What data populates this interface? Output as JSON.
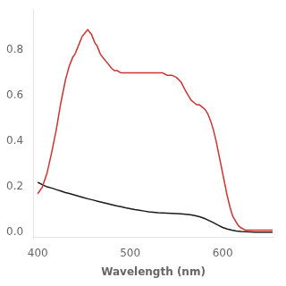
{
  "chart_data": {
    "type": "line",
    "xlabel": "Wavelength (nm)",
    "xlim": [
      395,
      655
    ],
    "ylim": [
      -0.02,
      0.98
    ],
    "xticks": [
      400,
      500,
      600
    ],
    "yticks": [
      {
        "value": 0.0,
        "label": "0.0"
      },
      0.2,
      0.4,
      0.6,
      0.8
    ],
    "grid": false,
    "series": [
      {
        "color": "#cc3333",
        "x": [
          400,
          405,
          410,
          415,
          420,
          425,
          430,
          432,
          434,
          436,
          438,
          440,
          442,
          444,
          446,
          448,
          450,
          452,
          454,
          456,
          458,
          460,
          462,
          464,
          466,
          468,
          470,
          472,
          474,
          476,
          478,
          480,
          483,
          486,
          490,
          494,
          498,
          502,
          506,
          510,
          515,
          520,
          525,
          530,
          535,
          540,
          545,
          550,
          555,
          560,
          563,
          566,
          569,
          572,
          575,
          578,
          581,
          584,
          587,
          590,
          593,
          596,
          599,
          602,
          605,
          608,
          611,
          614,
          617,
          620,
          625,
          630,
          635,
          640,
          645,
          650,
          654
        ],
        "values": [
          0.17,
          0.2,
          0.26,
          0.35,
          0.45,
          0.57,
          0.67,
          0.7,
          0.73,
          0.75,
          0.77,
          0.78,
          0.8,
          0.82,
          0.84,
          0.86,
          0.87,
          0.88,
          0.89,
          0.88,
          0.87,
          0.85,
          0.83,
          0.82,
          0.8,
          0.78,
          0.77,
          0.76,
          0.75,
          0.74,
          0.73,
          0.72,
          0.71,
          0.71,
          0.7,
          0.7,
          0.7,
          0.7,
          0.7,
          0.7,
          0.7,
          0.7,
          0.7,
          0.7,
          0.7,
          0.69,
          0.69,
          0.68,
          0.66,
          0.62,
          0.6,
          0.58,
          0.57,
          0.56,
          0.56,
          0.55,
          0.54,
          0.52,
          0.49,
          0.45,
          0.4,
          0.34,
          0.28,
          0.22,
          0.16,
          0.11,
          0.07,
          0.05,
          0.03,
          0.02,
          0.01,
          0.01,
          0.01,
          0.01,
          0.01,
          0.01,
          0.01
        ]
      },
      {
        "color": "#1a1a1a",
        "x": [
          400,
          405,
          410,
          415,
          420,
          425,
          430,
          435,
          440,
          445,
          450,
          455,
          460,
          465,
          470,
          475,
          480,
          485,
          490,
          495,
          500,
          505,
          510,
          515,
          520,
          525,
          530,
          535,
          540,
          545,
          550,
          555,
          560,
          565,
          570,
          575,
          580,
          585,
          590,
          595,
          600,
          605,
          610,
          615,
          620,
          625,
          630,
          635,
          640,
          645,
          650,
          654
        ],
        "values": [
          0.22,
          0.21,
          0.2,
          0.195,
          0.188,
          0.182,
          0.175,
          0.17,
          0.164,
          0.158,
          0.152,
          0.147,
          0.142,
          0.137,
          0.132,
          0.127,
          0.122,
          0.117,
          0.113,
          0.108,
          0.104,
          0.1,
          0.097,
          0.094,
          0.091,
          0.089,
          0.087,
          0.086,
          0.085,
          0.084,
          0.083,
          0.082,
          0.08,
          0.078,
          0.074,
          0.069,
          0.062,
          0.053,
          0.043,
          0.032,
          0.022,
          0.015,
          0.01,
          0.006,
          0.004,
          0.003,
          0.002,
          0.001,
          0.001,
          0.001,
          0.001,
          0.001
        ]
      }
    ]
  }
}
